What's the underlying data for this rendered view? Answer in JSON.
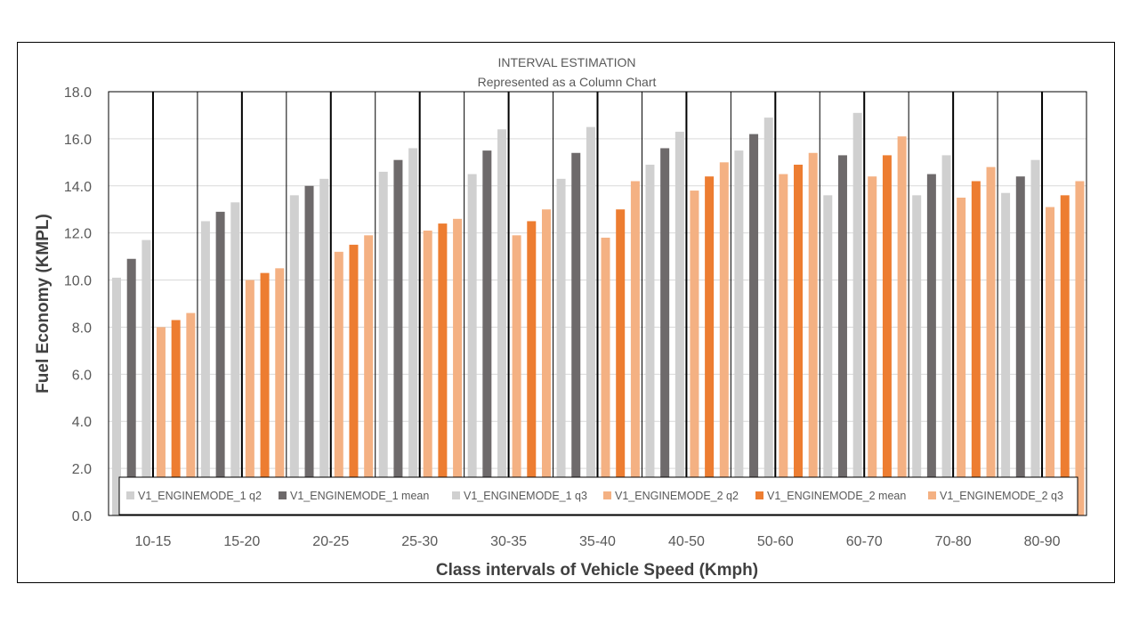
{
  "chart_data": {
    "type": "bar",
    "title": "INTERVAL ESTIMATION",
    "subtitle": "Represented as a Column Chart",
    "xlabel": "Class intervals of Vehicle Speed (Kmph)",
    "ylabel": "Fuel Economy (KMPL)",
    "ylim": [
      0,
      18
    ],
    "yticks": [
      "0.0",
      "2.0",
      "4.0",
      "6.0",
      "8.0",
      "10.0",
      "12.0",
      "14.0",
      "16.0",
      "18.0"
    ],
    "grid": true,
    "legend_position": "bottom-inside",
    "categories": [
      "10-15",
      "15-20",
      "20-25",
      "25-30",
      "30-35",
      "35-40",
      "40-50",
      "50-60",
      "60-70",
      "70-80",
      "80-90"
    ],
    "groups": [
      {
        "name": "V1_ENGINEMODE_1",
        "series": [
          {
            "name": "V1_ENGINEMODE_1 q2",
            "color": "#d0d0d0",
            "values": [
              10.1,
              12.5,
              13.6,
              14.6,
              14.5,
              14.3,
              14.9,
              15.5,
              13.6,
              13.6,
              13.7
            ]
          },
          {
            "name": "V1_ENGINEMODE_1 mean",
            "color": "#6e6a6b",
            "values": [
              10.9,
              12.9,
              14.0,
              15.1,
              15.5,
              15.4,
              15.6,
              16.2,
              15.3,
              14.5,
              14.4
            ]
          },
          {
            "name": "V1_ENGINEMODE_1 q3",
            "color": "#d0d0d0",
            "values": [
              11.7,
              13.3,
              14.3,
              15.6,
              16.4,
              16.5,
              16.3,
              16.9,
              17.1,
              15.3,
              15.1
            ]
          }
        ]
      },
      {
        "name": "V1_ENGINEMODE_2",
        "series": [
          {
            "name": "V1_ENGINEMODE_2 q2",
            "color": "#f4b183",
            "values": [
              8.0,
              10.0,
              11.2,
              12.1,
              11.9,
              11.8,
              13.8,
              14.5,
              14.4,
              13.5,
              13.1
            ]
          },
          {
            "name": "V1_ENGINEMODE_2 mean",
            "color": "#ed7d31",
            "values": [
              8.3,
              10.3,
              11.5,
              12.4,
              12.5,
              13.0,
              14.4,
              14.9,
              15.3,
              14.2,
              13.6
            ]
          },
          {
            "name": "V1_ENGINEMODE_2 q3",
            "color": "#f4b183",
            "values": [
              8.6,
              10.5,
              11.9,
              12.6,
              13.0,
              14.2,
              15.0,
              15.4,
              16.1,
              14.8,
              14.2
            ]
          }
        ]
      }
    ]
  }
}
